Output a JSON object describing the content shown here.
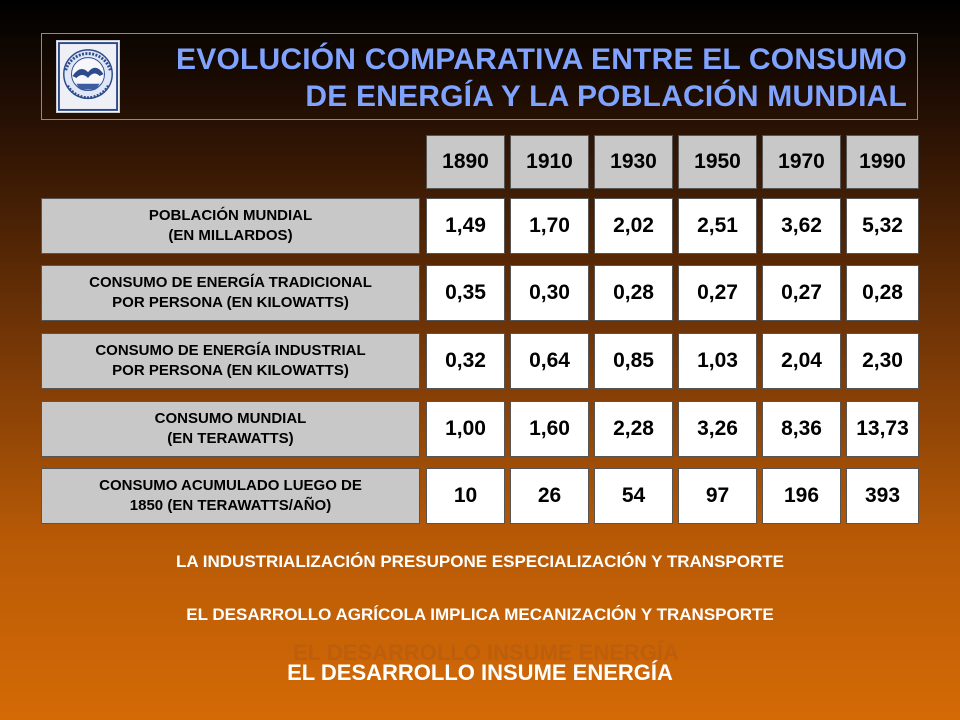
{
  "title": {
    "line1": "EVOLUCIÓN COMPARATIVA ENTRE EL CONSUMO",
    "line2": "DE ENERGÍA Y LA POBLACIÓN MUNDIAL"
  },
  "logo": {
    "icon": "university-seal-icon",
    "seal_text": "UNIVERSIDAD NACIONAL DE CUYO · MENDOZA ARGENTINA"
  },
  "years": [
    "1890",
    "1910",
    "1930",
    "1950",
    "1970",
    "1990"
  ],
  "rows": [
    {
      "label_line1": "POBLACIÓN MUNDIAL",
      "label_line2": "(EN MILLARDOS)",
      "values": [
        "1,49",
        "1,70",
        "2,02",
        "2,51",
        "3,62",
        "5,32"
      ]
    },
    {
      "label_line1": "CONSUMO DE ENERGÍA TRADICIONAL",
      "label_line2": "POR PERSONA (EN KILOWATTS)",
      "values": [
        "0,35",
        "0,30",
        "0,28",
        "0,27",
        "0,27",
        "0,28"
      ]
    },
    {
      "label_line1": "CONSUMO DE ENERGÍA INDUSTRIAL",
      "label_line2": "POR PERSONA (EN KILOWATTS)",
      "values": [
        "0,32",
        "0,64",
        "0,85",
        "1,03",
        "2,04",
        "2,30"
      ]
    },
    {
      "label_line1": "CONSUMO MUNDIAL",
      "label_line2": "(EN TERAWATTS)",
      "values": [
        "1,00",
        "1,60",
        "2,28",
        "3,26",
        "8,36",
        "13,73"
      ]
    },
    {
      "label_line1": "CONSUMO ACUMULADO LUEGO DE",
      "label_line2": "1850 (EN TERAWATTS/AÑO)",
      "values": [
        "10",
        "26",
        "54",
        "97",
        "196",
        "393"
      ]
    }
  ],
  "notes": [
    "LA INDUSTRIALIZACIÓN PRESUPONE ESPECIALIZACIÓN Y TRANSPORTE",
    "EL DESARROLLO AGRÍCOLA IMPLICA  MECANIZACIÓN Y TRANSPORTE"
  ],
  "conclusion": "EL DESARROLLO INSUME ENERGÍA",
  "colors": {
    "title": "#7fa3ff",
    "label_bg": "#c8c8c8",
    "cell_bg": "#ffffff"
  }
}
